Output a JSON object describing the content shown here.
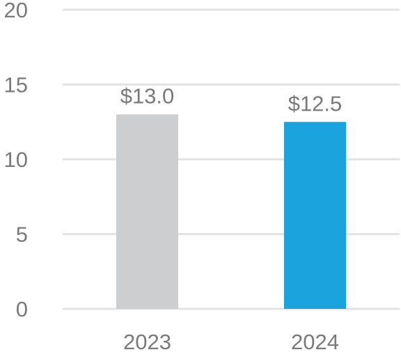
{
  "chart_data": {
    "type": "bar",
    "categories": [
      "2023",
      "2024"
    ],
    "values": [
      13.0,
      12.5
    ],
    "data_labels": [
      "$13.0",
      "$12.5"
    ],
    "colors": [
      "#cdcecf",
      "#1aa3dc"
    ],
    "ylim": [
      0,
      20
    ],
    "yticks": [
      0,
      5,
      10,
      15,
      20
    ],
    "ytick_labels": [
      "0",
      "5",
      "10",
      "15",
      "20"
    ],
    "grid": true,
    "title": "",
    "xlabel": "",
    "ylabel": ""
  }
}
